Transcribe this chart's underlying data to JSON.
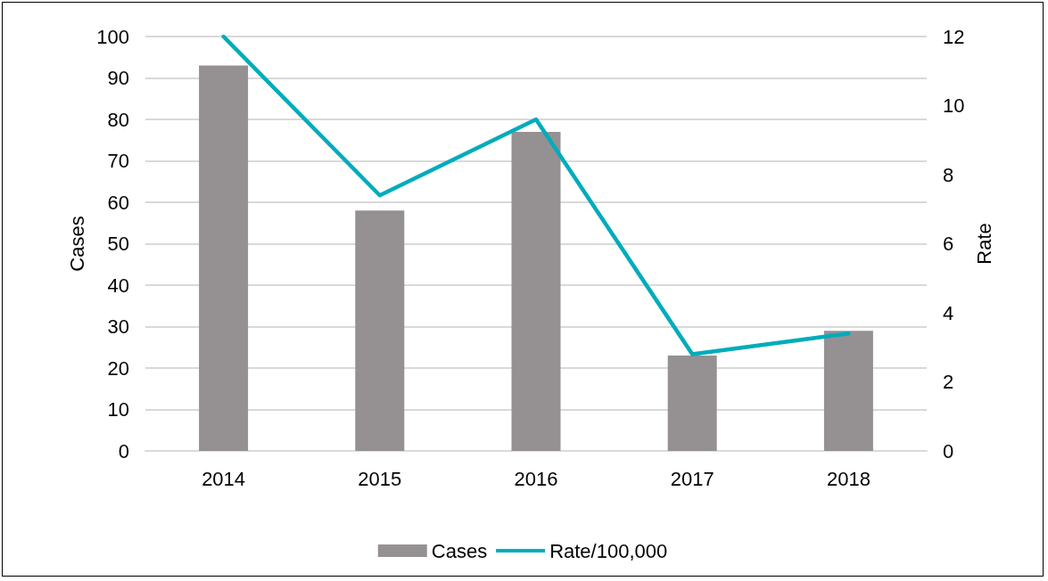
{
  "chart_data": {
    "type": "bar",
    "categories": [
      "2014",
      "2015",
      "2016",
      "2017",
      "2018"
    ],
    "series": [
      {
        "name": "Cases",
        "color": "#959193",
        "values": [
          93,
          58,
          77,
          23,
          29
        ]
      },
      {
        "name": "Rate/100,000",
        "type": "line",
        "axis": "y2",
        "color": "#00acbb",
        "values": [
          12,
          7.4,
          9.6,
          2.8,
          3.4
        ]
      }
    ],
    "ylabel": "Cases",
    "y2label": "Rate",
    "ylim": [
      0,
      100
    ],
    "yticks": [
      0,
      10,
      20,
      30,
      40,
      50,
      60,
      70,
      80,
      90,
      100
    ],
    "y2lim": [
      0,
      12
    ],
    "y2ticks": [
      0,
      2,
      4,
      6,
      8,
      10,
      12
    ],
    "grid": "y",
    "legend": "bottom",
    "marker": "none",
    "line_style": "solid"
  }
}
